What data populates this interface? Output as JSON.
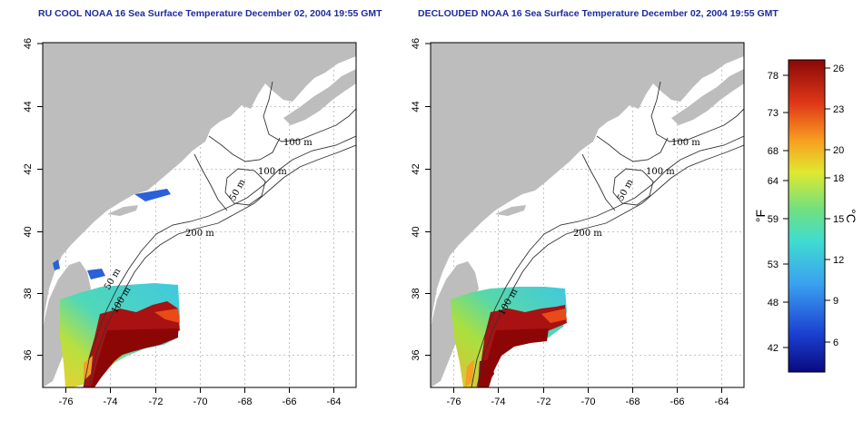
{
  "titles": {
    "left": "RU COOL NOAA 16 Sea Surface Temperature December 02, 2004 19:55 GMT",
    "right": "DECLOUDED NOAA 16 Sea Surface Temperature December 02, 2004 19:55 GMT"
  },
  "axes": {
    "lon_ticks": [
      "-76",
      "-74",
      "-72",
      "-70",
      "-68",
      "-66",
      "-64"
    ],
    "lat_ticks": [
      "36",
      "38",
      "40",
      "42",
      "44",
      "46"
    ]
  },
  "isobaths": {
    "left": [
      "100 m",
      "100 m",
      "50 m",
      "200 m",
      "50 m",
      "100 m"
    ],
    "right": [
      "100 m",
      "100 m",
      "50 m",
      "200 m",
      "100 m"
    ]
  },
  "colorbar": {
    "f_label": "°F",
    "c_label": "°C",
    "f_ticks": [
      "78",
      "73",
      "68",
      "64",
      "59",
      "53",
      "48",
      "42"
    ],
    "c_ticks": [
      "26",
      "23",
      "20",
      "18",
      "15",
      "12",
      "9",
      "6"
    ]
  },
  "colors": {
    "land": "#bdbdbd",
    "title": "#1c2c9c",
    "sst_warm": "#a01010",
    "sst_mid": "#f2d020",
    "sst_cool": "#40d8c0",
    "sst_cold": "#1a3fb0"
  }
}
